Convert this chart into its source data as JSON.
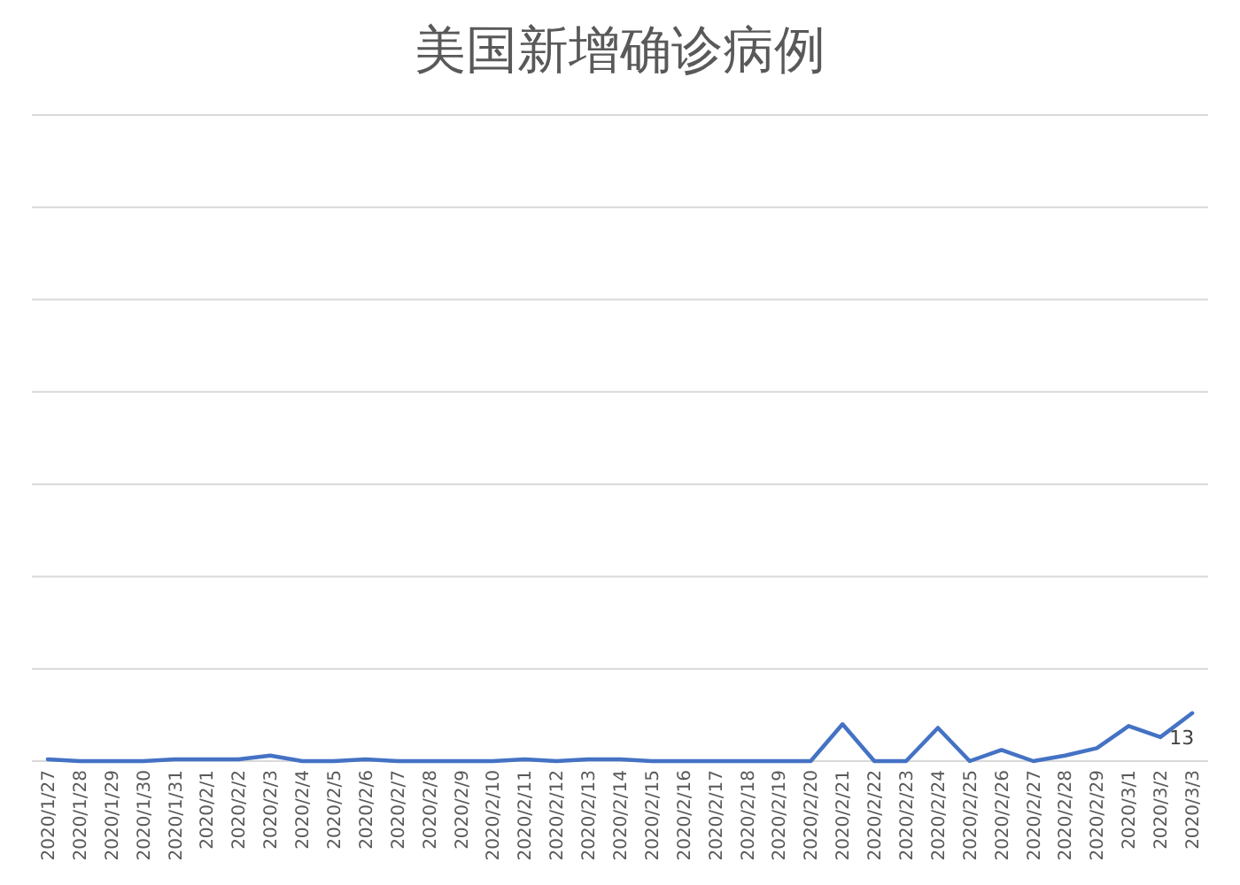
{
  "chart_data": {
    "type": "line",
    "title": "美国新增确诊病例",
    "categories": [
      "2020/1/27",
      "2020/1/28",
      "2020/1/29",
      "2020/1/30",
      "2020/1/31",
      "2020/2/1",
      "2020/2/2",
      "2020/2/3",
      "2020/2/4",
      "2020/2/5",
      "2020/2/6",
      "2020/2/7",
      "2020/2/8",
      "2020/2/9",
      "2020/2/10",
      "2020/2/11",
      "2020/2/12",
      "2020/2/13",
      "2020/2/14",
      "2020/2/15",
      "2020/2/16",
      "2020/2/17",
      "2020/2/18",
      "2020/2/19",
      "2020/2/20",
      "2020/2/21",
      "2020/2/22",
      "2020/2/23",
      "2020/2/24",
      "2020/2/25",
      "2020/2/26",
      "2020/2/27",
      "2020/2/28",
      "2020/2/29",
      "2020/3/1",
      "2020/3/2",
      "2020/3/3"
    ],
    "series": [
      {
        "color": "#4472c4",
        "values": [
          1,
          0,
          0,
          0,
          1,
          1,
          1,
          3,
          0,
          0,
          1,
          0,
          0,
          0,
          0,
          1,
          0,
          1,
          1,
          0,
          0,
          0,
          0,
          0,
          0,
          20,
          0,
          0,
          18,
          0,
          6,
          0,
          3,
          7,
          19,
          13,
          26
        ],
        "value_labels": [
          null,
          null,
          null,
          null,
          null,
          null,
          null,
          null,
          null,
          null,
          null,
          null,
          null,
          null,
          null,
          null,
          null,
          null,
          null,
          null,
          null,
          null,
          null,
          null,
          null,
          null,
          null,
          null,
          null,
          null,
          null,
          null,
          null,
          null,
          null,
          "13",
          null
        ]
      }
    ],
    "ylim": [
      0,
      350
    ],
    "yticks": [
      {
        "value": 0,
        "label": null
      },
      {
        "value": 50,
        "label": null
      },
      {
        "value": 100,
        "label": null
      },
      {
        "value": 150,
        "label": null
      },
      {
        "value": 200,
        "label": null
      },
      {
        "value": 250,
        "label": null
      },
      {
        "value": 300,
        "label": null
      },
      {
        "value": 350,
        "label": null
      }
    ],
    "grid": "y",
    "tick_labels": "x",
    "marker": "none",
    "line_style": "solid"
  }
}
